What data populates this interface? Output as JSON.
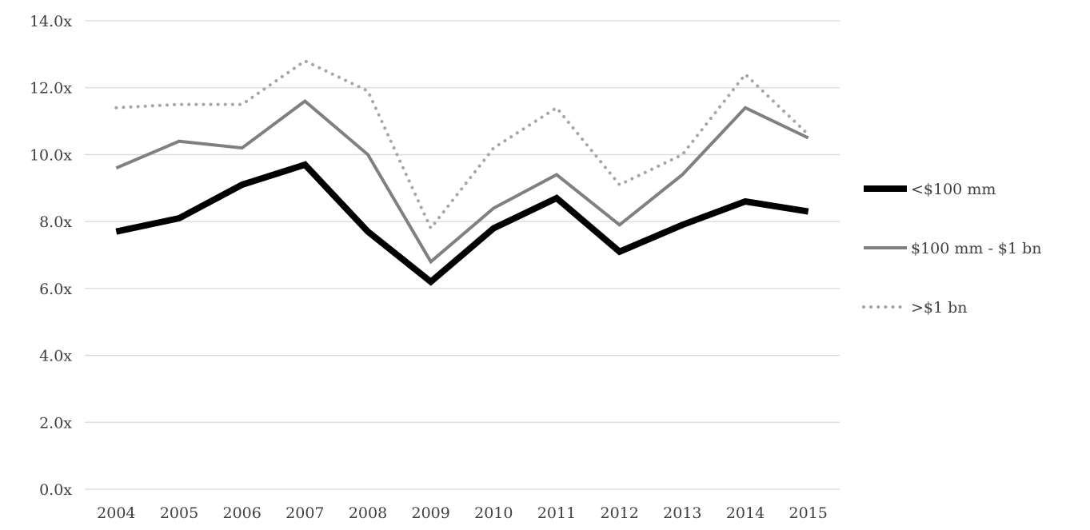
{
  "chart_data": {
    "type": "line",
    "categories": [
      "2004",
      "2005",
      "2006",
      "2007",
      "2008",
      "2009",
      "2010",
      "2011",
      "2012",
      "2013",
      "2014",
      "2015"
    ],
    "ylim": [
      0,
      14
    ],
    "yticks": [
      0,
      2,
      4,
      6,
      8,
      10,
      12,
      14
    ],
    "ytick_labels": [
      "0.0x",
      "2.0x",
      "4.0x",
      "6.0x",
      "8.0x",
      "10.0x",
      "12.0x",
      "14.0x"
    ],
    "grid": true,
    "legend_position": "right",
    "series": [
      {
        "name": "<$100 mm",
        "values": [
          7.7,
          8.1,
          9.1,
          9.7,
          7.7,
          6.2,
          7.8,
          8.7,
          7.1,
          7.9,
          8.6,
          8.3
        ],
        "color": "#000000",
        "style": "solid-thick"
      },
      {
        "name": "$100 mm - $1 bn",
        "values": [
          9.6,
          10.4,
          10.2,
          11.6,
          10.0,
          6.8,
          8.4,
          9.4,
          7.9,
          9.4,
          11.4,
          10.5
        ],
        "color": "#808080",
        "style": "solid"
      },
      {
        "name": ">$1 bn",
        "values": [
          11.4,
          11.5,
          11.5,
          12.8,
          11.9,
          7.8,
          10.2,
          11.4,
          9.1,
          10.0,
          12.4,
          10.6
        ],
        "color": "#a6a6a6",
        "style": "dotted"
      }
    ]
  }
}
